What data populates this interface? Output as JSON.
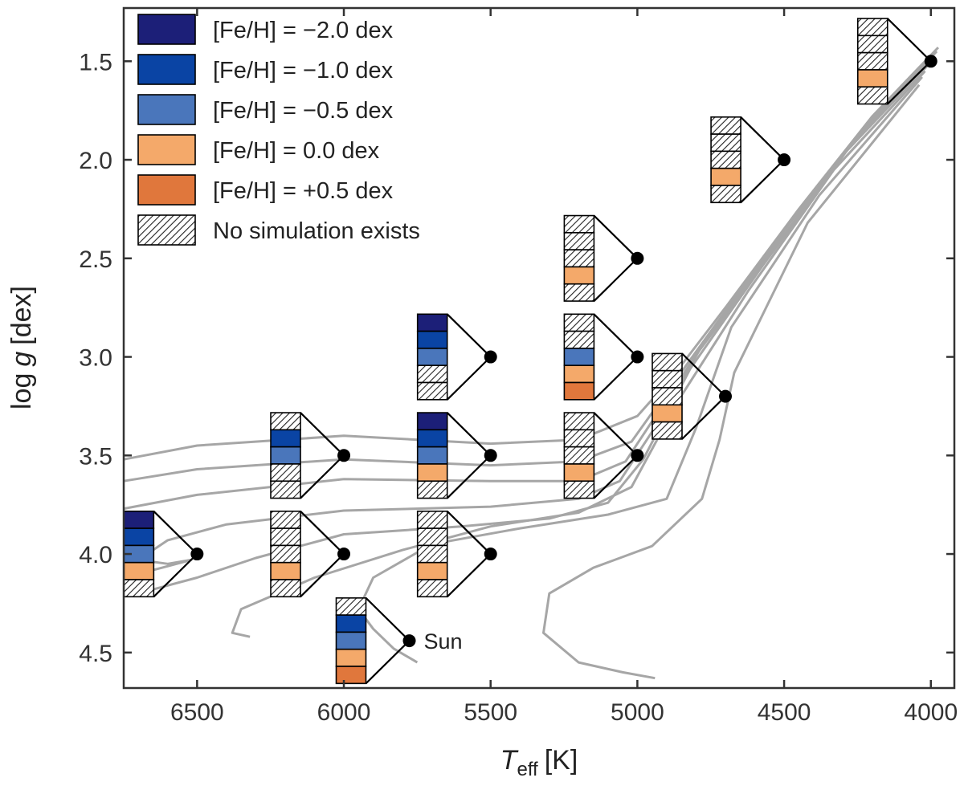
{
  "chart_data": {
    "type": "scatter",
    "title": "",
    "xlabel_main": "T",
    "xlabel_sub": "eff",
    "xlabel_unit": "[K]",
    "ylabel_main": "log",
    "ylabel_var": "g",
    "ylabel_unit": "[dex]",
    "xlim": [
      6750,
      3920
    ],
    "ylim": [
      4.68,
      1.23
    ],
    "xticks": [
      6500,
      6000,
      5500,
      5000,
      4500,
      4000
    ],
    "xtick_labels": [
      "6500",
      "6000",
      "5500",
      "5000",
      "4500",
      "4000"
    ],
    "yticks": [
      1.5,
      2.0,
      2.5,
      3.0,
      3.5,
      4.0,
      4.5
    ],
    "ytick_labels": [
      "1.5",
      "2.0",
      "2.5",
      "3.0",
      "3.5",
      "4.0",
      "4.5"
    ],
    "metallicities": [
      "-2.0",
      "-1.0",
      "-0.5",
      "0.0",
      "+0.5"
    ],
    "colors": {
      "m2.0": "#1c1f78",
      "m1.0": "#0a44a4",
      "m0.5": "#4a76bb",
      "p0.0": "#f4a96a",
      "p0.5": "#e0773c",
      "track": "#a6a6a6",
      "axis": "#333333",
      "point": "#000000"
    },
    "legend": [
      {
        "key": "m2.0",
        "label": "[Fe/H] = −2.0 dex"
      },
      {
        "key": "m1.0",
        "label": "[Fe/H] = −1.0 dex"
      },
      {
        "key": "m0.5",
        "label": "[Fe/H] = −0.5 dex"
      },
      {
        "key": "p0.0",
        "label": "[Fe/H] = 0.0 dex"
      },
      {
        "key": "p0.5",
        "label": "[Fe/H] = +0.5 dex"
      },
      {
        "key": "none",
        "label": "No simulation exists"
      }
    ],
    "points": [
      {
        "teff": 4000,
        "logg": 1.5,
        "sims": [
          false,
          false,
          false,
          true,
          false
        ]
      },
      {
        "teff": 4500,
        "logg": 2.0,
        "sims": [
          false,
          false,
          false,
          true,
          false
        ]
      },
      {
        "teff": 5000,
        "logg": 2.5,
        "sims": [
          false,
          false,
          false,
          true,
          false
        ]
      },
      {
        "teff": 5500,
        "logg": 3.0,
        "sims": [
          true,
          true,
          true,
          false,
          false
        ]
      },
      {
        "teff": 5000,
        "logg": 3.0,
        "sims": [
          false,
          false,
          true,
          true,
          true
        ]
      },
      {
        "teff": 4700,
        "logg": 3.2,
        "sims": [
          false,
          false,
          false,
          true,
          false
        ]
      },
      {
        "teff": 6000,
        "logg": 3.5,
        "sims": [
          false,
          true,
          true,
          false,
          false
        ]
      },
      {
        "teff": 5500,
        "logg": 3.5,
        "sims": [
          true,
          true,
          true,
          true,
          false
        ]
      },
      {
        "teff": 5000,
        "logg": 3.5,
        "sims": [
          false,
          false,
          false,
          true,
          false
        ]
      },
      {
        "teff": 6500,
        "logg": 4.0,
        "sims": [
          true,
          true,
          true,
          true,
          false
        ]
      },
      {
        "teff": 6000,
        "logg": 4.0,
        "sims": [
          false,
          false,
          false,
          true,
          false
        ]
      },
      {
        "teff": 5500,
        "logg": 4.0,
        "sims": [
          false,
          false,
          false,
          true,
          false
        ]
      },
      {
        "teff": 5777,
        "logg": 4.44,
        "label": "Sun",
        "sims": [
          false,
          true,
          true,
          true,
          true
        ]
      }
    ],
    "tracks": [
      [
        [
          3975,
          1.43
        ],
        [
          4200,
          1.78
        ],
        [
          4450,
          2.25
        ],
        [
          4700,
          2.75
        ],
        [
          4880,
          3.1
        ],
        [
          5000,
          3.3
        ],
        [
          5200,
          3.42
        ],
        [
          5500,
          3.44
        ],
        [
          6000,
          3.4
        ],
        [
          6500,
          3.45
        ],
        [
          6750,
          3.52
        ]
      ],
      [
        [
          3980,
          1.45
        ],
        [
          4220,
          1.82
        ],
        [
          4480,
          2.32
        ],
        [
          4730,
          2.83
        ],
        [
          4900,
          3.18
        ],
        [
          5020,
          3.43
        ],
        [
          5200,
          3.53
        ],
        [
          5500,
          3.55
        ],
        [
          6000,
          3.52
        ],
        [
          6500,
          3.57
        ],
        [
          6750,
          3.63
        ]
      ],
      [
        [
          3990,
          1.47
        ],
        [
          4240,
          1.86
        ],
        [
          4500,
          2.38
        ],
        [
          4760,
          2.9
        ],
        [
          4920,
          3.26
        ],
        [
          5040,
          3.53
        ],
        [
          5200,
          3.63
        ],
        [
          5500,
          3.63
        ],
        [
          6000,
          3.62
        ],
        [
          6500,
          3.7
        ],
        [
          6750,
          3.77
        ]
      ],
      [
        [
          4000,
          1.49
        ],
        [
          4260,
          1.9
        ],
        [
          4530,
          2.45
        ],
        [
          4790,
          2.97
        ],
        [
          4950,
          3.38
        ],
        [
          5060,
          3.63
        ],
        [
          5200,
          3.72
        ],
        [
          5500,
          3.76
        ],
        [
          6000,
          3.78
        ],
        [
          6400,
          3.85
        ],
        [
          6600,
          3.93
        ],
        [
          6700,
          4.03
        ],
        [
          6600,
          4.05
        ],
        [
          6520,
          4.03
        ],
        [
          6620,
          4.07
        ],
        [
          6750,
          4.12
        ]
      ],
      [
        [
          4010,
          1.52
        ],
        [
          4290,
          1.96
        ],
        [
          4570,
          2.53
        ],
        [
          4820,
          3.06
        ],
        [
          4980,
          3.52
        ],
        [
          5100,
          3.74
        ],
        [
          5300,
          3.82
        ],
        [
          5600,
          3.86
        ],
        [
          6000,
          3.9
        ],
        [
          6300,
          4.02
        ],
        [
          6500,
          4.12
        ],
        [
          6650,
          4.18
        ],
        [
          6750,
          4.2
        ]
      ],
      [
        [
          4020,
          1.55
        ],
        [
          4330,
          2.05
        ],
        [
          4620,
          2.66
        ],
        [
          4860,
          3.22
        ],
        [
          5020,
          3.66
        ],
        [
          5200,
          3.79
        ],
        [
          5500,
          3.86
        ],
        [
          5800,
          3.98
        ],
        [
          6100,
          4.12
        ],
        [
          6350,
          4.28
        ],
        [
          6380,
          4.4
        ],
        [
          6320,
          4.42
        ]
      ],
      [
        [
          4030,
          1.58
        ],
        [
          4380,
          2.18
        ],
        [
          4680,
          2.85
        ],
        [
          4800,
          3.36
        ],
        [
          4900,
          3.72
        ],
        [
          5100,
          3.8
        ],
        [
          5400,
          3.87
        ],
        [
          5700,
          3.95
        ],
        [
          5900,
          4.12
        ],
        [
          5950,
          4.28
        ],
        [
          5900,
          4.38
        ],
        [
          5830,
          4.48
        ],
        [
          5750,
          4.55
        ]
      ],
      [
        [
          4040,
          1.62
        ],
        [
          4420,
          2.32
        ],
        [
          4670,
          3.08
        ],
        [
          4720,
          3.42
        ],
        [
          4780,
          3.72
        ],
        [
          4950,
          3.96
        ],
        [
          5150,
          4.07
        ],
        [
          5300,
          4.2
        ],
        [
          5320,
          4.4
        ],
        [
          5200,
          4.55
        ],
        [
          5050,
          4.6
        ],
        [
          4940,
          4.63
        ]
      ]
    ]
  }
}
